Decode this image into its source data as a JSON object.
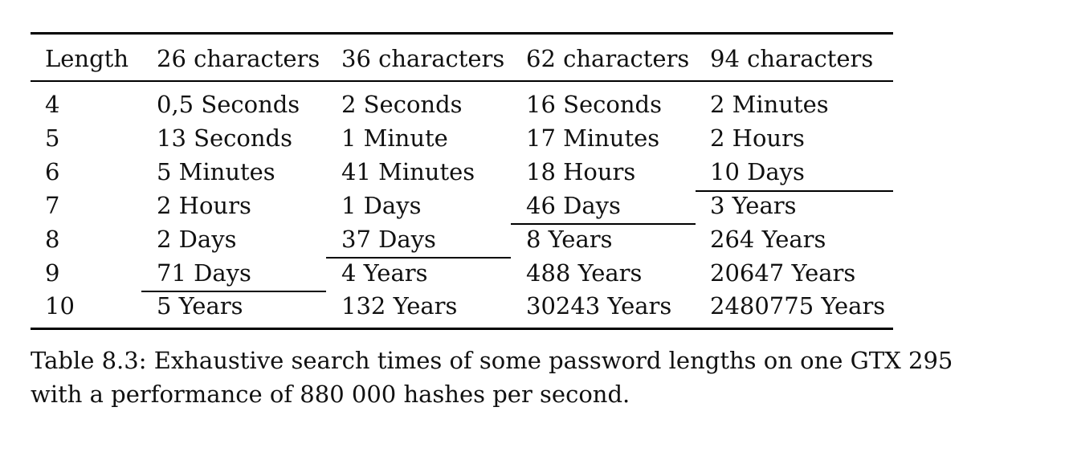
{
  "table": {
    "headers": [
      "Length",
      "26 characters",
      "36 characters",
      "62 characters",
      "94 characters"
    ],
    "rows": [
      [
        "4",
        "0,5 Seconds",
        "2 Seconds",
        "16 Seconds",
        "2 Minutes"
      ],
      [
        "5",
        "13 Seconds",
        "1 Minute",
        "17 Minutes",
        "2 Hours"
      ],
      [
        "6",
        "5 Minutes",
        "41 Minutes",
        "18 Hours",
        "10 Days"
      ],
      [
        "7",
        "2 Hours",
        "1 Days",
        "46 Days",
        "3 Years"
      ],
      [
        "8",
        "2 Days",
        "37 Days",
        "8 Years",
        "264 Years"
      ],
      [
        "9",
        "71 Days",
        "4 Years",
        "488 Years",
        "20647 Years"
      ],
      [
        "10",
        "5 Years",
        "132 Years",
        "30243 Years",
        "2480775 Years"
      ]
    ]
  },
  "caption": {
    "line1": "Table 8.3: Exhaustive search times of some password lengths on one GTX 295",
    "line2": "with a performance of 880 000 hashes per second."
  }
}
